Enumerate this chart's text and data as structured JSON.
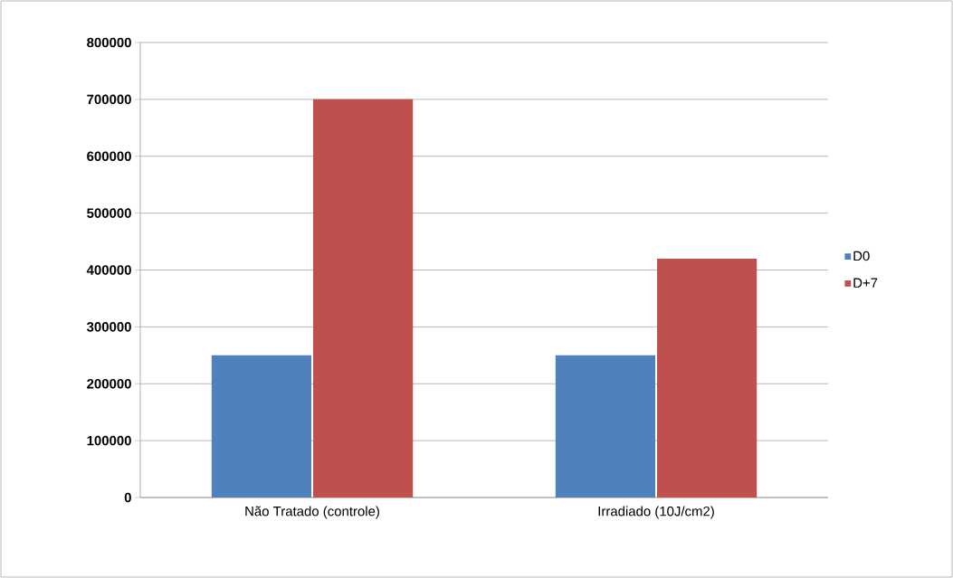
{
  "chart_data": {
    "type": "bar",
    "categories": [
      "Não Tratado (controle)",
      "Irradiado (10J/cm2)"
    ],
    "series": [
      {
        "name": "D0",
        "color": "#4f81bd",
        "values": [
          250000,
          250000
        ]
      },
      {
        "name": "D+7",
        "color": "#c0504d",
        "values": [
          700000,
          420000
        ]
      }
    ],
    "ylim": [
      0,
      800000
    ],
    "yticks": [
      0,
      100000,
      200000,
      300000,
      400000,
      500000,
      600000,
      700000,
      800000
    ],
    "grid": "y",
    "legend": "right"
  }
}
